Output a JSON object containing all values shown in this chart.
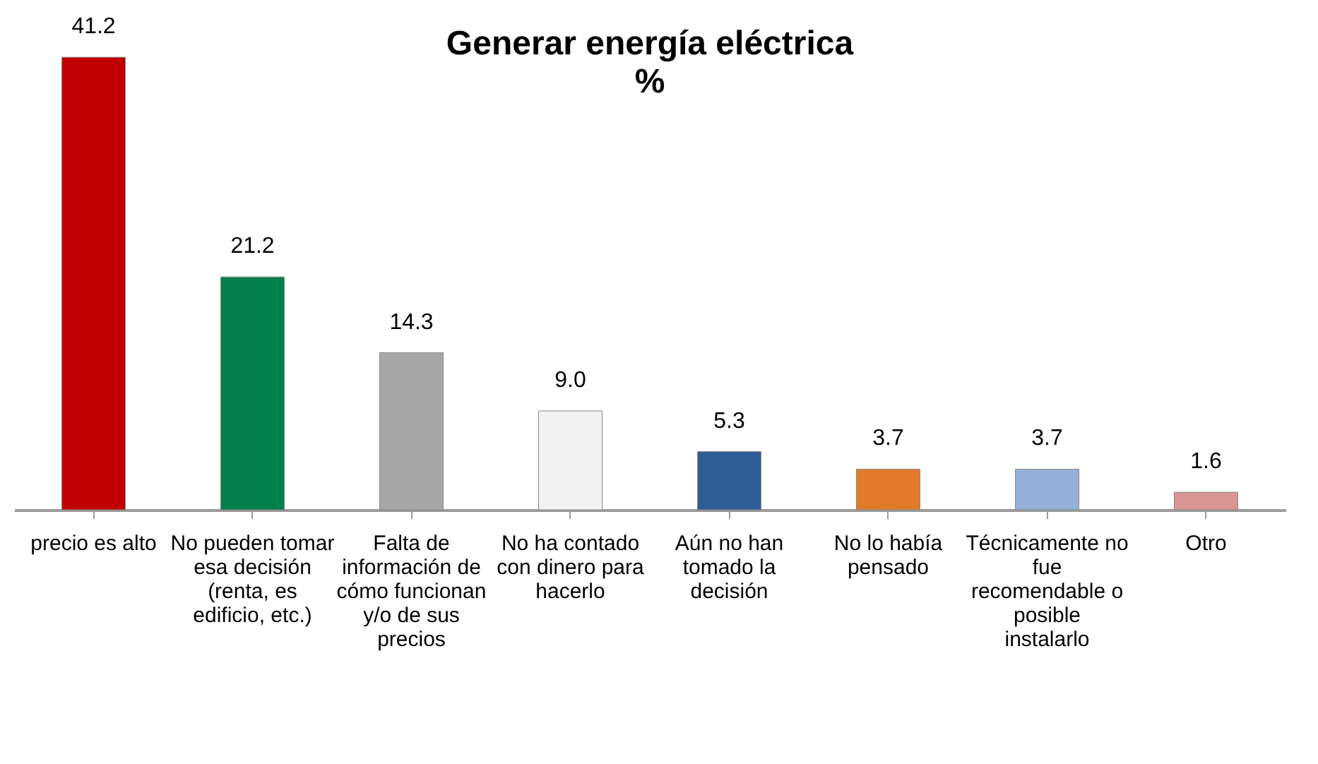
{
  "chart_data": {
    "type": "bar",
    "title": "Generar energía eléctrica",
    "subtitle": "%",
    "categories": [
      "precio es alto",
      "No pueden tomar esa decisión (renta, es edificio, etc.)",
      "Falta de información de cómo funcionan y/o de sus precios",
      "No ha contado con dinero para hacerlo",
      "Aún no han tomado la decisión",
      "No lo había pensado",
      "Técnicamente no fue recomendable o posible instalarlo",
      "Otro"
    ],
    "values": [
      41.2,
      21.2,
      14.3,
      9.0,
      5.3,
      3.7,
      3.7,
      1.6
    ],
    "colors": [
      "#c00000",
      "#00804a",
      "#a6a6a6",
      "#f2f2f2",
      "#2e5e95",
      "#e07b2a",
      "#95b0d8",
      "#d99594"
    ],
    "value_labels": [
      "41.2",
      "21.2",
      "14.3",
      "9.0",
      "5.3",
      "3.7",
      "3.7",
      "1.6"
    ]
  }
}
